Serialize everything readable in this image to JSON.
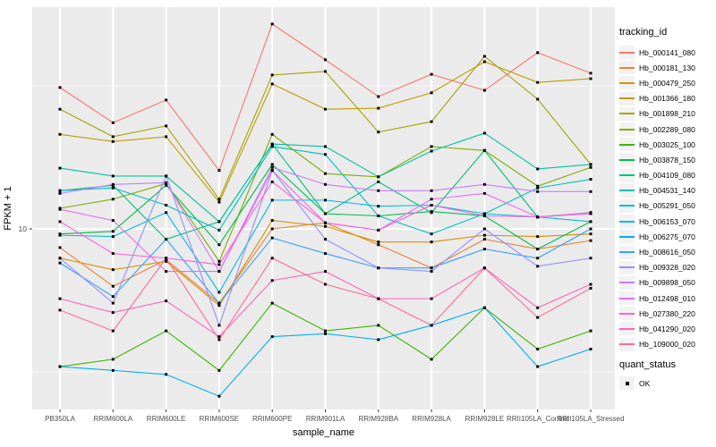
{
  "chart_data": {
    "type": "line",
    "xlabel": "sample_name",
    "ylabel": "FPKM + 1",
    "y_scale": "log10",
    "y_ticks": [
      10
    ],
    "y_minor_ticks": [
      3.162,
      31.62
    ],
    "x_categories": [
      "PB350LA",
      "RRIM600LA",
      "RRIM600LE",
      "RRIM600SE",
      "RRIM600PE",
      "RRIM901LA",
      "RRIM928BA",
      "RRIM928LA",
      "RRIM928LE",
      "RRII105LA_Control",
      "RRII105LA_Stressed"
    ],
    "legend": {
      "title": "tracking_id",
      "position": "right"
    },
    "quant_legend": {
      "title": "quant_status",
      "items": [
        {
          "label": "OK"
        }
      ]
    },
    "style": {
      "panel_bg": "#EBEBEB",
      "grid_color": "#FFFFFF",
      "point_color": "#000000",
      "axis_text_color": "#4D4D4D",
      "axis_title_color": "#000000",
      "tick_color": "#333333",
      "legend_key_bg": "#F2F2F2"
    },
    "series": [
      {
        "name": "Hb_000141_080",
        "color": "#F8766D",
        "values": [
          31.2,
          23.5,
          28.2,
          16.0,
          52.0,
          39.0,
          29.0,
          34.7,
          30.5,
          41.3,
          35.0
        ]
      },
      {
        "name": "Hb_000181_130",
        "color": "#EA8331",
        "values": [
          8.6,
          6.3,
          7.8,
          5.5,
          10.0,
          10.5,
          8.8,
          7.3,
          9.2,
          8.5,
          9.1
        ]
      },
      {
        "name": "Hb_000479_250",
        "color": "#D89000",
        "values": [
          7.9,
          7.2,
          7.7,
          5.4,
          10.7,
          10.2,
          9.0,
          9.0,
          9.5,
          9.4,
          9.6
        ]
      },
      {
        "name": "Hb_001366_180",
        "color": "#C09B00",
        "values": [
          21.4,
          20.2,
          21.0,
          12.4,
          32.1,
          26.2,
          26.4,
          29.9,
          38.4,
          32.5,
          33.5
        ]
      },
      {
        "name": "Hb_001898_210",
        "color": "#A3A500",
        "values": [
          26.2,
          21.0,
          22.9,
          12.7,
          34.5,
          35.5,
          21.8,
          23.7,
          40.1,
          28.4,
          16.8
        ]
      },
      {
        "name": "Hb_002289_080",
        "color": "#7CAE00",
        "values": [
          11.8,
          12.7,
          14.4,
          7.7,
          21.4,
          15.6,
          15.2,
          19.4,
          18.8,
          14.1,
          16.4
        ]
      },
      {
        "name": "Hb_003025_100",
        "color": "#39B600",
        "values": [
          3.3,
          3.5,
          4.4,
          3.2,
          5.5,
          4.4,
          4.6,
          3.5,
          5.3,
          3.8,
          4.4
        ]
      },
      {
        "name": "Hb_003878_150",
        "color": "#00BB4E",
        "values": [
          9.6,
          9.8,
          14.2,
          8.8,
          16.8,
          11.3,
          11.1,
          11.5,
          11.1,
          8.5,
          10.6
        ]
      },
      {
        "name": "Hb_004109_080",
        "color": "#00BF7D",
        "values": [
          13.6,
          14.2,
          9.2,
          10.6,
          19.8,
          11.3,
          14.6,
          11.4,
          18.8,
          11.0,
          11.4
        ]
      },
      {
        "name": "Hb_004531_140",
        "color": "#00C1A3",
        "values": [
          16.3,
          15.3,
          15.3,
          10.6,
          19.8,
          19.4,
          15.2,
          18.7,
          21.6,
          16.2,
          16.8
        ]
      },
      {
        "name": "Hb_005291_050",
        "color": "#00BFC4",
        "values": [
          13.6,
          13.9,
          12.1,
          9.9,
          19.4,
          18.2,
          11.1,
          9.6,
          11.3,
          13.9,
          14.9
        ]
      },
      {
        "name": "Hb_006153_070",
        "color": "#00BAE0",
        "values": [
          9.5,
          9.4,
          11.4,
          6.0,
          12.6,
          12.6,
          12.0,
          12.1,
          11.3,
          11.0,
          10.6
        ]
      },
      {
        "name": "Hb_006275_070",
        "color": "#00B0F6",
        "values": [
          3.3,
          3.2,
          3.1,
          2.6,
          4.2,
          4.3,
          4.1,
          4.6,
          5.3,
          3.3,
          3.8
        ]
      },
      {
        "name": "Hb_008616_050",
        "color": "#35A2FF",
        "values": [
          7.6,
          5.8,
          9.2,
          5.5,
          9.3,
          8.2,
          7.3,
          7.3,
          8.5,
          7.9,
          10.0
        ]
      },
      {
        "name": "Hb_009328_020",
        "color": "#9590FF",
        "values": [
          7.9,
          5.5,
          15.3,
          4.6,
          16.0,
          9.2,
          7.3,
          7.1,
          10.0,
          7.4,
          7.9
        ]
      },
      {
        "name": "Hb_009898_050",
        "color": "#C77CFF",
        "values": [
          13.3,
          14.3,
          14.5,
          7.1,
          16.4,
          14.3,
          13.6,
          13.6,
          14.3,
          13.5,
          13.5
        ]
      },
      {
        "name": "Hb_012498_010",
        "color": "#E76BF3",
        "values": [
          11.7,
          10.7,
          7.1,
          7.1,
          16.0,
          10.5,
          9.9,
          12.7,
          13.3,
          11.0,
          11.3
        ]
      },
      {
        "name": "Hb_027380_220",
        "color": "#FA62DB",
        "values": [
          10.6,
          8.2,
          7.9,
          7.5,
          14.6,
          10.5,
          9.9,
          12.1,
          11.1,
          11.0,
          11.4
        ]
      },
      {
        "name": "Hb_041290_020",
        "color": "#FF62BC",
        "values": [
          5.7,
          5.1,
          5.6,
          4.2,
          6.6,
          7.1,
          5.7,
          5.7,
          7.3,
          5.3,
          6.4
        ]
      },
      {
        "name": "Hb_109000_020",
        "color": "#FF6A98",
        "values": [
          5.2,
          4.4,
          7.9,
          4.1,
          7.9,
          6.4,
          5.7,
          4.6,
          7.3,
          4.9,
          6.2
        ]
      }
    ]
  }
}
